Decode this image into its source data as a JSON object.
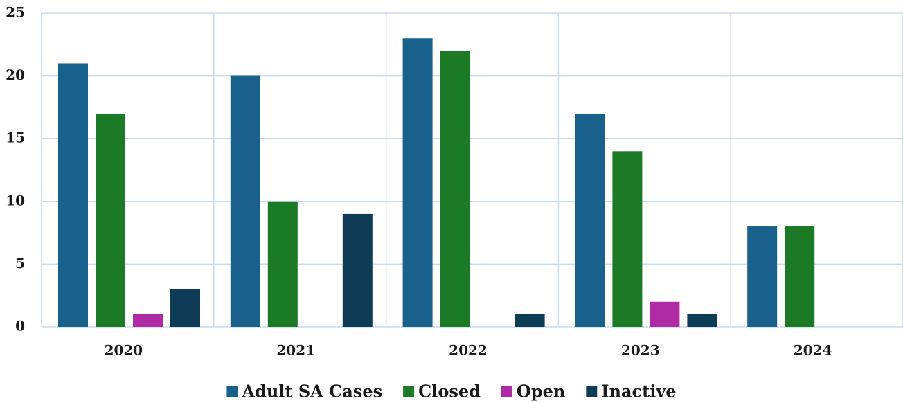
{
  "chart_data": {
    "type": "bar",
    "categories": [
      "2020",
      "2021",
      "2022",
      "2023",
      "2024"
    ],
    "series": [
      {
        "name": "Adult SA Cases",
        "color": "#17618a",
        "values": [
          21,
          20,
          23,
          17,
          8
        ]
      },
      {
        "name": "Closed",
        "color": "#1a7a25",
        "values": [
          17,
          10,
          22,
          14,
          8
        ]
      },
      {
        "name": "Open",
        "color": "#b02aa6",
        "values": [
          1,
          0,
          0,
          2,
          0
        ]
      },
      {
        "name": "Inactive",
        "color": "#0e3b56",
        "values": [
          3,
          9,
          1,
          1,
          0
        ]
      }
    ],
    "ylim": [
      0,
      25
    ],
    "yticks": [
      0,
      5,
      10,
      15,
      20,
      25
    ],
    "grid": true,
    "legend": "bottom"
  }
}
